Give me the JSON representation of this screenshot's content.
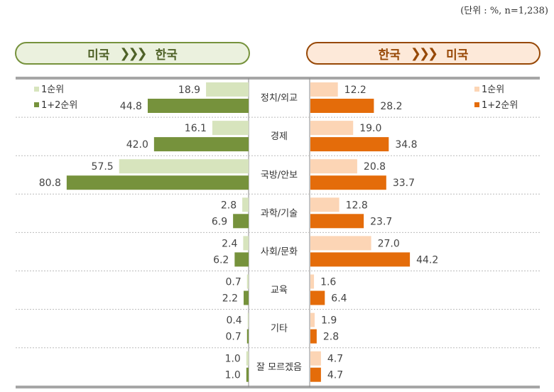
{
  "unit_note": "(단위 : %, n=1,238)",
  "headers": {
    "left": {
      "from": "미국",
      "arrow": "❯❯❯",
      "to": "한국"
    },
    "right": {
      "from": "한국",
      "arrow": "❯❯❯",
      "to": "미국"
    }
  },
  "colors": {
    "left_light": "#d7e4bd",
    "left_dark": "#76923c",
    "right_light": "#fcd5b5",
    "right_dark": "#e46c0a"
  },
  "chart_data": {
    "type": "bar",
    "orientation": "horizontal-butterfly",
    "categories": [
      "정치/외교",
      "경제",
      "국방/안보",
      "과학/기술",
      "사회/문화",
      "교육",
      "기타",
      "잘 모르겠음"
    ],
    "panels": [
      {
        "title": "미국 ❯❯❯ 한국",
        "side": "left",
        "legend_placement": "top-left",
        "series": [
          {
            "name": "1순위",
            "values": [
              18.9,
              16.1,
              57.5,
              2.8,
              2.4,
              0.7,
              0.4,
              1.0
            ]
          },
          {
            "name": "1+2순위",
            "values": [
              44.8,
              42.0,
              80.8,
              6.9,
              6.2,
              2.2,
              0.7,
              1.0
            ]
          }
        ]
      },
      {
        "title": "한국 ❯❯❯ 미국",
        "side": "right",
        "legend_placement": "top-right",
        "series": [
          {
            "name": "1순위",
            "values": [
              12.2,
              19.0,
              20.8,
              12.8,
              27.0,
              1.6,
              1.9,
              4.7
            ]
          },
          {
            "name": "1+2순위",
            "values": [
              28.2,
              34.8,
              33.7,
              23.7,
              44.2,
              6.4,
              2.8,
              4.7
            ]
          }
        ]
      }
    ]
  }
}
